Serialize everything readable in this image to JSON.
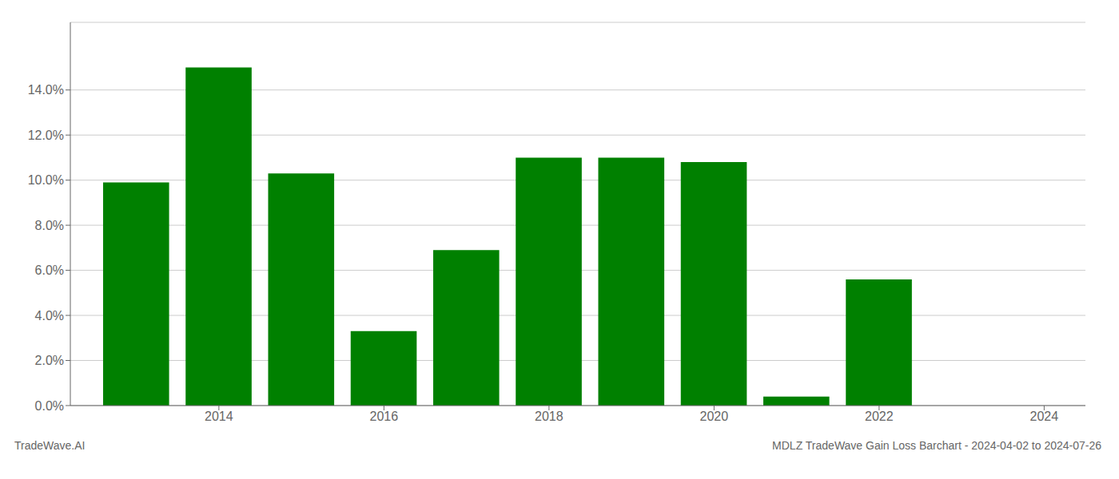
{
  "chart_data": {
    "type": "bar",
    "title": "MDLZ TradeWave Gain Loss Barchart - 2024-04-02 to 2024-07-26",
    "annotations": [
      "TradeWave.AI"
    ],
    "x": [
      2013,
      2014,
      2015,
      2016,
      2017,
      2018,
      2019,
      2020,
      2021,
      2022,
      2023
    ],
    "values": [
      0.099,
      0.15,
      0.103,
      0.033,
      0.069,
      0.11,
      0.11,
      0.108,
      0.004,
      0.056,
      0.0
    ],
    "color": "#008000",
    "xlim": [
      2012.2,
      2024.5
    ],
    "xticks": [
      2014,
      2016,
      2018,
      2020,
      2022,
      2024
    ],
    "ylim": [
      0.0,
      0.17
    ],
    "yticks": [
      {
        "value": 0.0,
        "label": "0.0%"
      },
      {
        "value": 0.02,
        "label": "2.0%"
      },
      {
        "value": 0.04,
        "label": "4.0%"
      },
      {
        "value": 0.06,
        "label": "6.0%"
      },
      {
        "value": 0.08,
        "label": "8.0%"
      },
      {
        "value": 0.1,
        "label": "10.0%"
      },
      {
        "value": 0.12,
        "label": "12.0%"
      },
      {
        "value": 0.14,
        "label": "14.0%"
      }
    ],
    "grid": true
  }
}
